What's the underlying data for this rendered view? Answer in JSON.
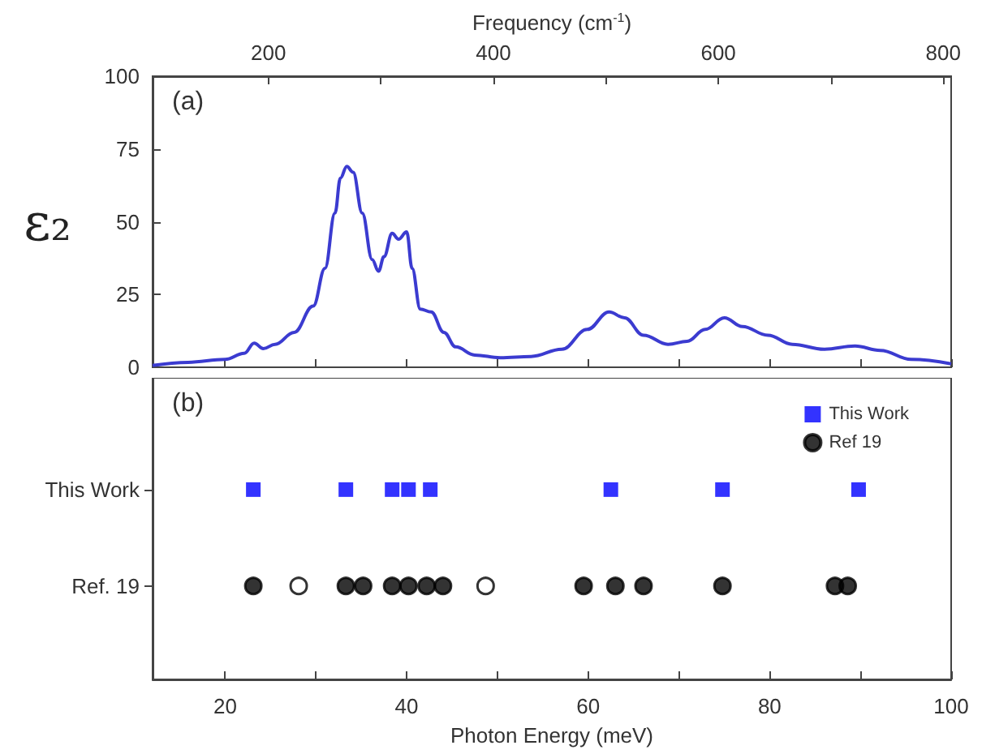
{
  "chart_data": [
    {
      "type": "line",
      "annotations": [
        "(a)"
      ],
      "ylabel": "ε₂",
      "x2label": "Frequency (cm$^{-1}$)",
      "xlim": [
        12,
        100
      ],
      "xticks": [
        {
          "value": 20,
          "label": null
        },
        {
          "value": 30,
          "label": null
        },
        {
          "value": 40,
          "label": null
        },
        {
          "value": 50,
          "label": null
        },
        {
          "value": 60,
          "label": null
        },
        {
          "value": 70,
          "label": null
        },
        {
          "value": 80,
          "label": null
        },
        {
          "value": 90,
          "label": null
        },
        {
          "value": 100,
          "label": null
        }
      ],
      "x2lim": [
        97,
        807
      ],
      "x2ticks": [
        200,
        {
          "value": 300,
          "label": null
        },
        400,
        {
          "value": 500,
          "label": null
        },
        600,
        {
          "value": 700,
          "label": null
        },
        800
      ],
      "ylim": [
        0,
        100
      ],
      "yticks": [
        0,
        25,
        50,
        75,
        100
      ],
      "marker": "none",
      "line_style": "solid",
      "grid": false,
      "tick_labels": "y",
      "series": [
        {
          "color": "#3b3bd0",
          "x": [
            12,
            15.9,
            20,
            22.1,
            23.2,
            24.2,
            25.5,
            27.6,
            29.7,
            31,
            32.1,
            32.7,
            33.4,
            34.1,
            35.1,
            36.2,
            36.9,
            37.5,
            38.4,
            39.1,
            40,
            40.6,
            41.5,
            42.7,
            44.1,
            45.4,
            47.5,
            50.3,
            53.7,
            57.1,
            59.9,
            62.3,
            64,
            66.1,
            68.8,
            70.9,
            72.9,
            75,
            77,
            79.8,
            82.5,
            86,
            89.4,
            92.2,
            95.6,
            100
          ],
          "values": [
            0.6,
            1.7,
            2.7,
            4.8,
            8.3,
            6.4,
            7.9,
            12,
            21,
            34,
            53,
            65,
            69,
            67,
            53,
            37,
            33,
            38,
            46,
            44,
            46.5,
            34,
            20,
            19,
            12,
            7,
            4.2,
            3.3,
            3.7,
            6.2,
            13,
            19,
            17,
            11,
            7.9,
            8.9,
            13,
            17,
            14,
            11,
            7.9,
            6.2,
            7.3,
            5.8,
            2.7,
            1.2
          ]
        }
      ]
    },
    {
      "type": "scatter",
      "orientation": "horizontal",
      "annotations": [
        "(b)"
      ],
      "xlabel": "Photon Energy (meV)",
      "categories": [
        "This Work",
        "Ref. 19"
      ],
      "xlim": [
        12,
        100
      ],
      "xticks": [
        20,
        {
          "value": 30,
          "label": null
        },
        40,
        {
          "value": 50,
          "label": null
        },
        60,
        {
          "value": 70,
          "label": null
        },
        80,
        {
          "value": 90,
          "label": null
        },
        100
      ],
      "grid": false,
      "legend": "top right",
      "series": [
        {
          "name": "This Work",
          "color": "#0000ff",
          "marker": "square",
          "x": [
            "This Work",
            "This Work",
            "This Work",
            "This Work",
            "This Work",
            "This Work",
            "This Work",
            "This Work"
          ],
          "values": [
            23.1,
            33.3,
            38.4,
            40.2,
            42.6,
            62.5,
            74.8,
            89.8
          ]
        },
        {
          "name": "Ref 19",
          "color": "#000000",
          "marker": "circle",
          "x": [
            "Ref. 19",
            "Ref. 19",
            "Ref. 19",
            "Ref. 19",
            "Ref. 19",
            "Ref. 19",
            "Ref. 19",
            "Ref. 19",
            "Ref. 19",
            "Ref. 19",
            "Ref. 19",
            "Ref. 19",
            "Ref. 19"
          ],
          "values": [
            23.1,
            33.3,
            35.2,
            38.4,
            40.2,
            42.2,
            44,
            59.5,
            63,
            66.1,
            74.8,
            87.2,
            88.6
          ]
        },
        {
          "color": "#ffffff",
          "marker": "circle",
          "x": [
            "Ref. 19",
            "Ref. 19"
          ],
          "values": [
            28.1,
            48.7
          ]
        }
      ]
    }
  ]
}
